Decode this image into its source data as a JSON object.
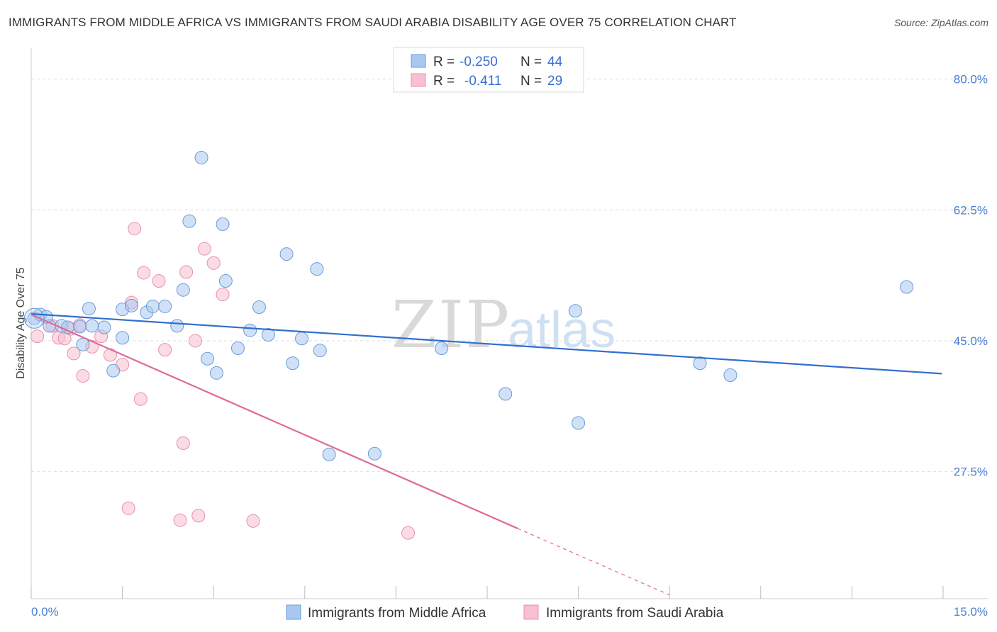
{
  "title": "IMMIGRANTS FROM MIDDLE AFRICA VS IMMIGRANTS FROM SAUDI ARABIA DISABILITY AGE OVER 75 CORRELATION CHART",
  "source": "Source: ZipAtlas.com",
  "watermark": {
    "zip": "ZIP",
    "atlas": "atlas"
  },
  "colors": {
    "blue_fill": "#a9c8f0",
    "blue_stroke": "#6a9ad8",
    "blue_line": "#2f6fcf",
    "pink_fill": "#f7bfd0",
    "pink_stroke": "#e890ab",
    "pink_line": "#e06a97",
    "tick_label": "#4a7fd0",
    "grid": "#dddddd"
  },
  "legend": {
    "rows": [
      {
        "r_label": "R =",
        "r_value": "-0.250",
        "n_label": "N =",
        "n_value": "44"
      },
      {
        "r_label": "R =",
        "r_value": "-0.411",
        "n_label": "N =",
        "n_value": "29"
      }
    ]
  },
  "chart_data": {
    "type": "scatter",
    "title": "IMMIGRANTS FROM MIDDLE AFRICA VS IMMIGRANTS FROM SAUDI ARABIA DISABILITY AGE OVER 75 CORRELATION CHART",
    "xlabel": "",
    "ylabel": "Disability Age Over 75",
    "xlim": [
      0,
      15
    ],
    "ylim": [
      10.5,
      83
    ],
    "x_tick_labels": [
      "0.0%",
      "15.0%"
    ],
    "y_ticks": [
      27.5,
      45.0,
      62.5,
      80.0
    ],
    "y_tick_labels": [
      "27.5%",
      "45.0%",
      "62.5%",
      "80.0%"
    ],
    "grid": true,
    "legend_position": "top-center",
    "series": [
      {
        "name": "Immigrants from Middle Africa",
        "color": "#a9c8f0",
        "trend": {
          "x": [
            0.0,
            14.98
          ],
          "y": [
            48.6,
            40.6
          ]
        },
        "points": [
          [
            0.05,
            48.0
          ],
          [
            0.15,
            48.5
          ],
          [
            0.3,
            47.0
          ],
          [
            0.5,
            47.0
          ],
          [
            0.6,
            46.8
          ],
          [
            0.95,
            49.3
          ],
          [
            0.85,
            44.5
          ],
          [
            1.2,
            46.8
          ],
          [
            1.5,
            49.2
          ],
          [
            1.65,
            49.7
          ],
          [
            1.9,
            48.8
          ],
          [
            2.0,
            49.6
          ],
          [
            2.2,
            49.6
          ],
          [
            1.35,
            41.0
          ],
          [
            1.5,
            45.4
          ],
          [
            2.4,
            47.0
          ],
          [
            2.5,
            51.8
          ],
          [
            2.6,
            61.0
          ],
          [
            2.8,
            69.5
          ],
          [
            2.9,
            42.6
          ],
          [
            3.05,
            40.7
          ],
          [
            3.15,
            60.6
          ],
          [
            3.2,
            53.0
          ],
          [
            3.4,
            44.0
          ],
          [
            3.6,
            46.4
          ],
          [
            3.75,
            49.5
          ],
          [
            3.9,
            45.8
          ],
          [
            4.2,
            56.6
          ],
          [
            4.3,
            42.0
          ],
          [
            4.45,
            45.3
          ],
          [
            4.7,
            54.6
          ],
          [
            4.75,
            43.7
          ],
          [
            4.9,
            29.8
          ],
          [
            5.65,
            29.9
          ],
          [
            6.75,
            44.0
          ],
          [
            7.8,
            37.9
          ],
          [
            8.95,
            49.0
          ],
          [
            9.0,
            34.0
          ],
          [
            11.0,
            42.0
          ],
          [
            11.5,
            40.4
          ],
          [
            14.4,
            52.2
          ],
          [
            0.25,
            48.2
          ],
          [
            0.8,
            46.9
          ],
          [
            1.0,
            47.0
          ]
        ]
      },
      {
        "name": "Immigrants from Saudi Arabia",
        "color": "#f7bfd0",
        "trend": {
          "x": [
            0.0,
            8.0
          ],
          "y": [
            48.5,
            19.9
          ]
        },
        "trend_dashed": {
          "x": [
            8.0,
            10.5
          ],
          "y": [
            19.9,
            11.0
          ]
        },
        "points": [
          [
            0.1,
            45.6
          ],
          [
            0.35,
            47.0
          ],
          [
            0.45,
            45.4
          ],
          [
            0.55,
            45.3
          ],
          [
            0.65,
            46.6
          ],
          [
            0.7,
            43.3
          ],
          [
            0.8,
            47.1
          ],
          [
            0.85,
            40.3
          ],
          [
            1.0,
            44.2
          ],
          [
            1.15,
            45.6
          ],
          [
            1.3,
            43.1
          ],
          [
            1.5,
            41.8
          ],
          [
            1.65,
            50.1
          ],
          [
            1.7,
            60.0
          ],
          [
            1.8,
            37.2
          ],
          [
            1.85,
            54.1
          ],
          [
            2.1,
            53.0
          ],
          [
            2.2,
            43.8
          ],
          [
            2.5,
            31.3
          ],
          [
            2.55,
            54.2
          ],
          [
            2.7,
            45.0
          ],
          [
            2.85,
            57.3
          ],
          [
            3.0,
            55.4
          ],
          [
            3.15,
            51.2
          ],
          [
            1.6,
            22.6
          ],
          [
            2.45,
            21.0
          ],
          [
            2.75,
            21.6
          ],
          [
            3.65,
            20.9
          ],
          [
            6.2,
            19.3
          ]
        ]
      }
    ]
  },
  "bottom_legend": [
    {
      "label": "Immigrants from Middle Africa"
    },
    {
      "label": "Immigrants from Saudi Arabia"
    }
  ]
}
